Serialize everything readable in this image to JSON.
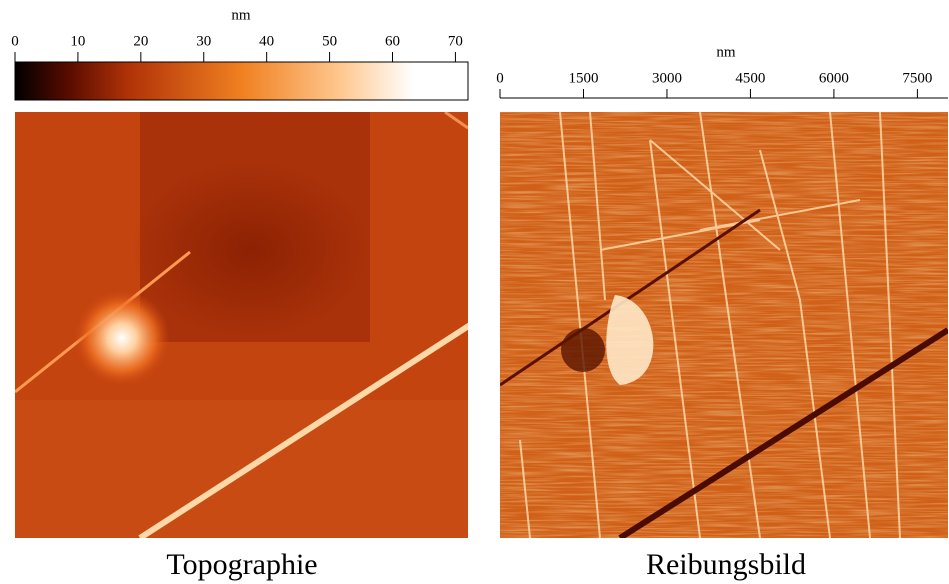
{
  "colorbar": {
    "unit": "nm",
    "ticks": [
      0,
      10,
      20,
      30,
      40,
      50,
      60,
      70
    ],
    "range": [
      0,
      72
    ]
  },
  "scale": {
    "unit": "nm",
    "ticks": [
      0,
      1500,
      3000,
      4500,
      6000,
      7500
    ],
    "range": [
      0,
      8050
    ]
  },
  "panels": [
    {
      "caption": "Topographie"
    },
    {
      "caption": "Reibungsbild"
    }
  ]
}
